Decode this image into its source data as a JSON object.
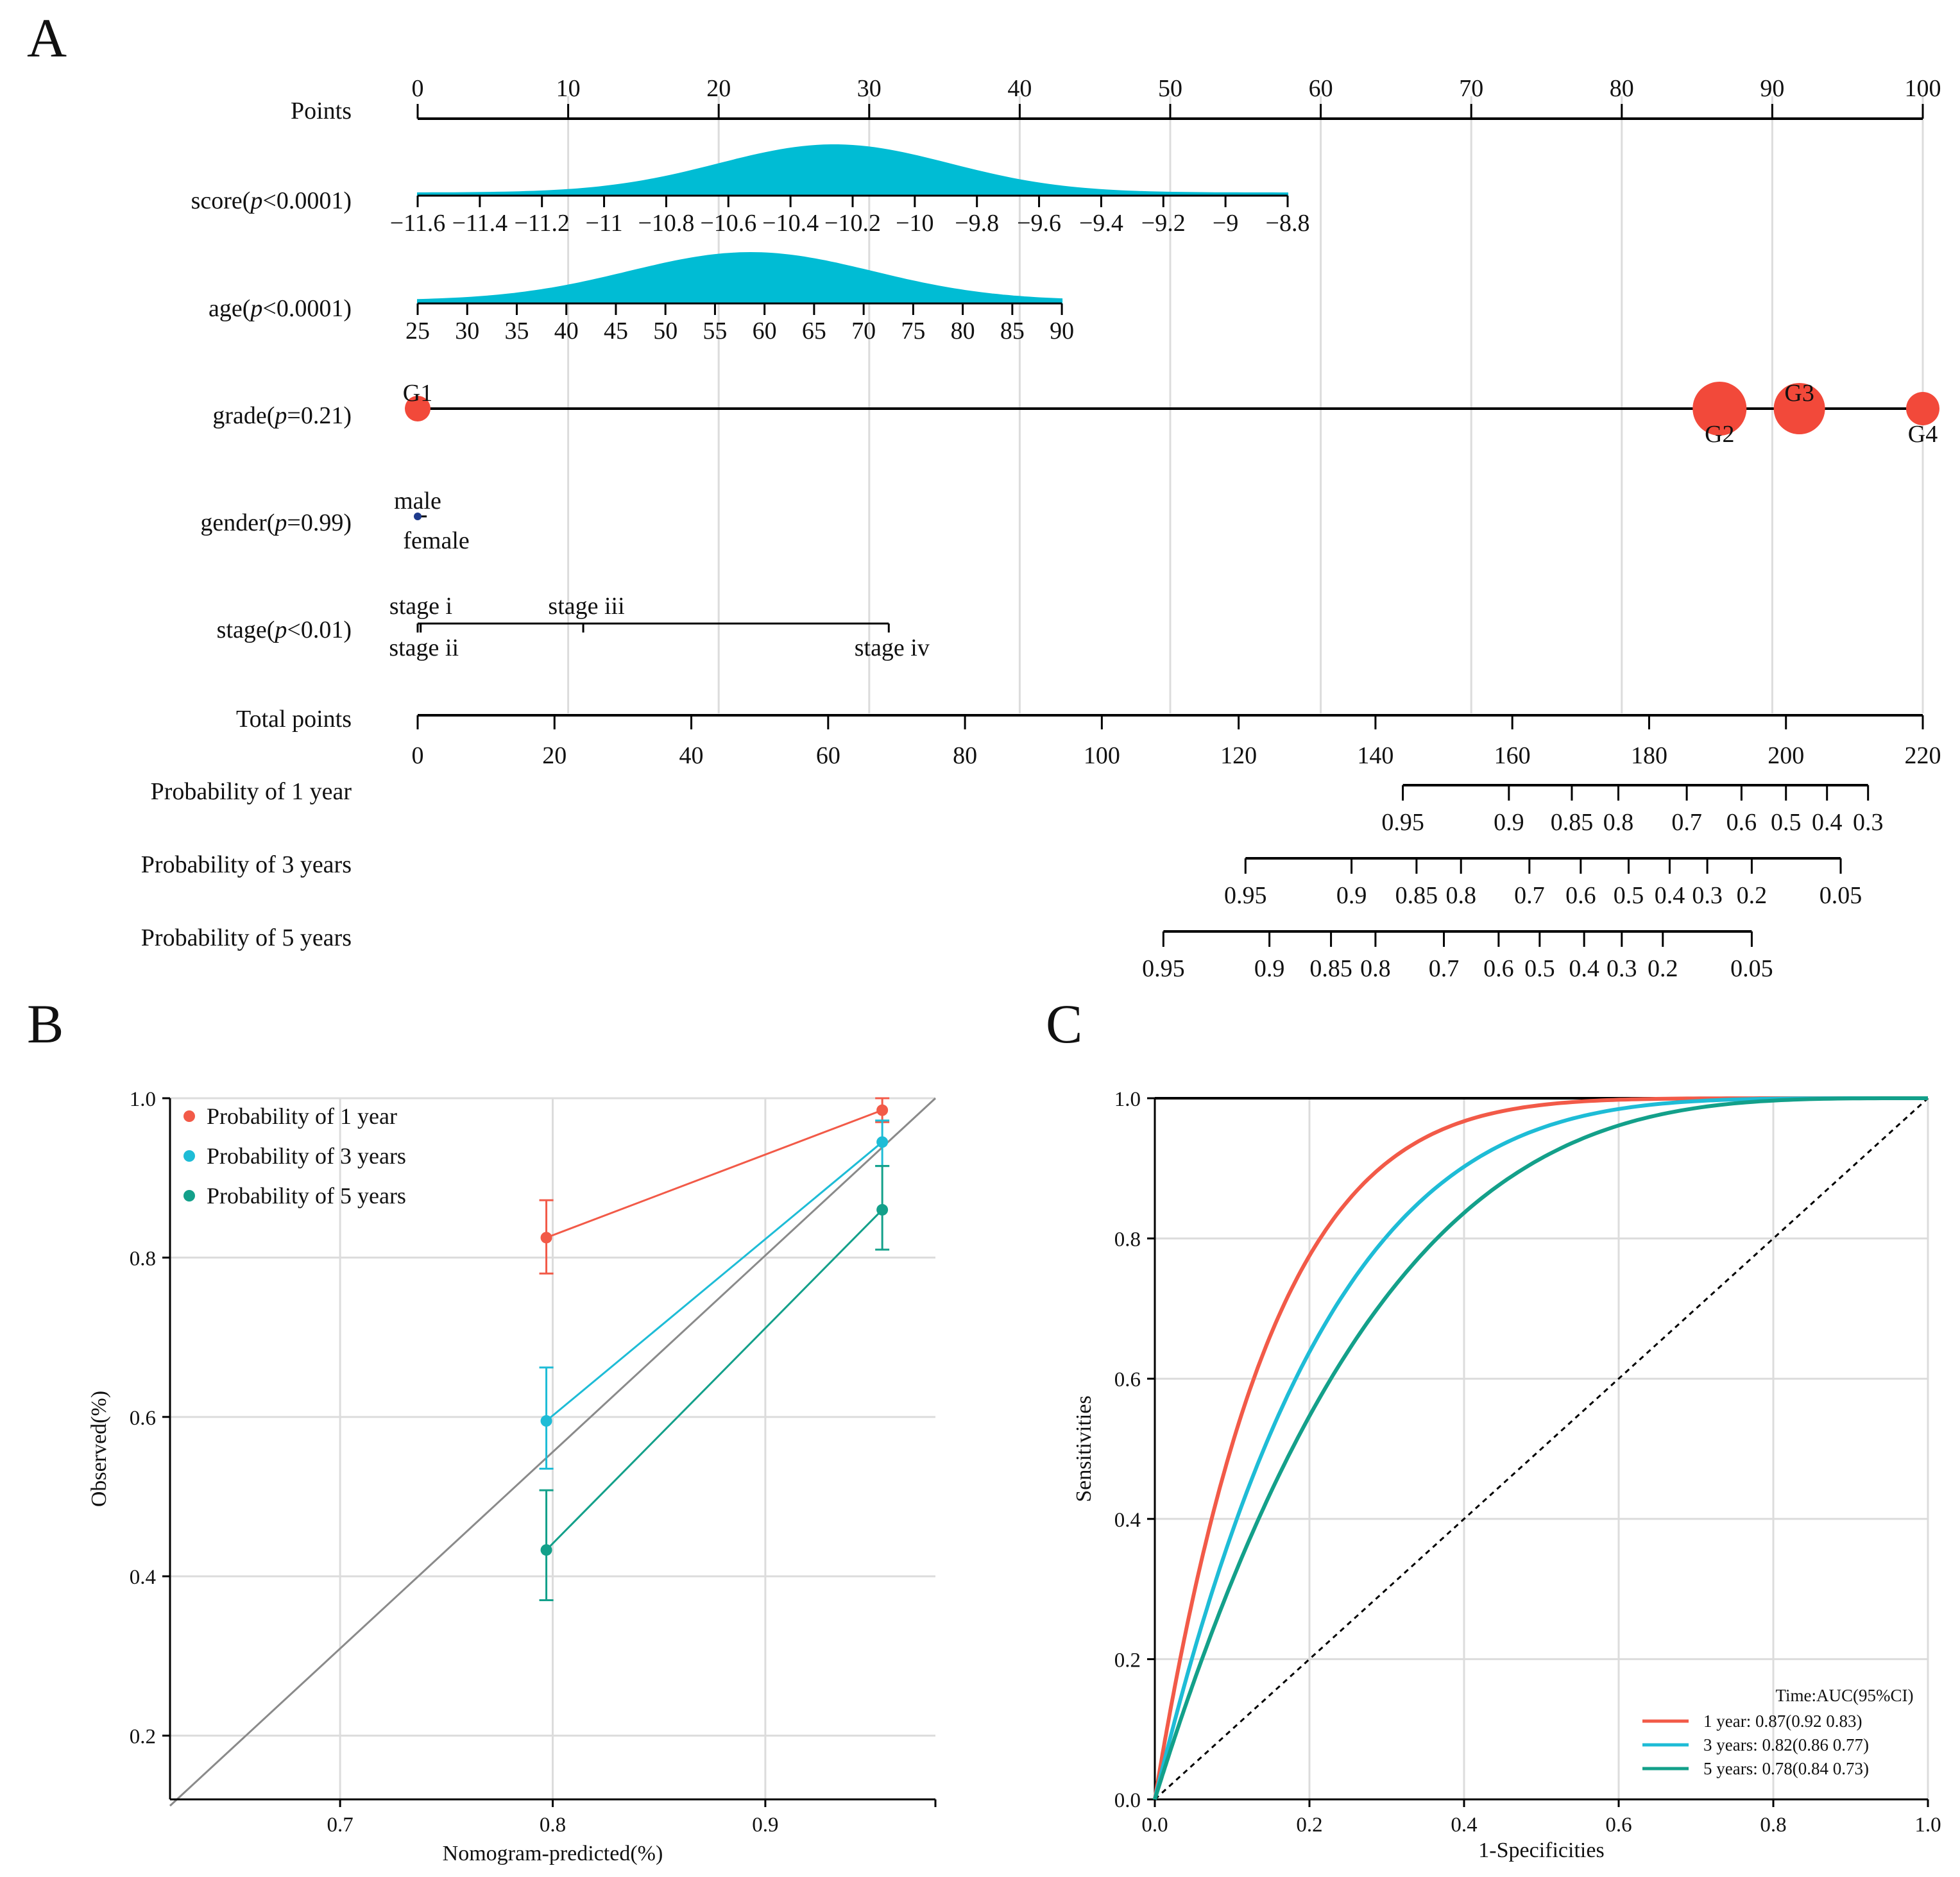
{
  "panels": {
    "a": "A",
    "b": "B",
    "c": "C"
  },
  "colors": {
    "one_year": "#f25a48",
    "three_year": "#1ebcd6",
    "five_year": "#13a08a",
    "fill": "#00bcd4",
    "dot": "#f2493a",
    "gender_dot": "#1f3b8c"
  },
  "nomogram": {
    "points": {
      "label": "Points",
      "ticks": [
        0,
        10,
        20,
        30,
        40,
        50,
        60,
        70,
        80,
        90,
        100
      ]
    },
    "score": {
      "label_main": "score(",
      "label_p": "p",
      "label_rest": "<0.0001)",
      "ticks": [
        "−11.6",
        "−11.4",
        "−11.2",
        "−11",
        "−10.8",
        "−10.6",
        "−10.4",
        "−10.2",
        "−10",
        "−9.8",
        "−9.6",
        "−9.4",
        "−9.2",
        "−9",
        "−8.8"
      ]
    },
    "age": {
      "label_main": "age(",
      "label_p": "p",
      "label_rest": "<0.0001)",
      "ticks": [
        "25",
        "30",
        "35",
        "40",
        "45",
        "50",
        "55",
        "60",
        "65",
        "70",
        "75",
        "80",
        "85",
        "90"
      ]
    },
    "grade": {
      "label_main": "grade(",
      "label_p": "p",
      "label_rest": "=0.21)",
      "levels": [
        {
          "name": "G1",
          "points": 0,
          "label_pos": "above",
          "size": 1
        },
        {
          "name": "G2",
          "points": 86.5,
          "label_pos": "below",
          "size": 2.1
        },
        {
          "name": "G3",
          "points": 91.8,
          "label_pos": "above",
          "size": 2
        },
        {
          "name": "G4",
          "points": 100,
          "label_pos": "below",
          "size": 1.3
        }
      ]
    },
    "gender": {
      "label_main": "gender(",
      "label_p": "p",
      "label_rest": "=0.99)",
      "levels": [
        {
          "name": "male",
          "points": 0,
          "label_pos": "above"
        },
        {
          "name": "female",
          "points": 0.6,
          "label_pos": "below"
        }
      ]
    },
    "stage": {
      "label_main": "stage(",
      "label_p": "p",
      "label_rest": "<0.01)",
      "levels": [
        {
          "name": "stage i",
          "points": 0,
          "label_pos": "above"
        },
        {
          "name": "stage ii",
          "points": 0.2,
          "label_pos": "below"
        },
        {
          "name": "stage iii",
          "points": 11,
          "label_pos": "above"
        },
        {
          "name": "stage iv",
          "points": 31.3,
          "label_pos": "below"
        }
      ]
    },
    "total_points": {
      "label": "Total points",
      "ticks": [
        0,
        20,
        40,
        60,
        80,
        100,
        120,
        140,
        160,
        180,
        200,
        220
      ]
    },
    "prob_1yr": {
      "label": "Probability of 1 year",
      "ticks": [
        {
          "text": "0.95",
          "total": 144
        },
        {
          "text": "0.9",
          "total": 159.5
        },
        {
          "text": "0.85",
          "total": 168.7
        },
        {
          "text": "0.8",
          "total": 175.5
        },
        {
          "text": "0.7",
          "total": 185.5
        },
        {
          "text": "0.6",
          "total": 193.5
        },
        {
          "text": "0.5",
          "total": 200
        },
        {
          "text": "0.4",
          "total": 206
        },
        {
          "text": "0.3",
          "total": 212
        }
      ]
    },
    "prob_3yr": {
      "label": "Probability of 3 years",
      "ticks": [
        {
          "text": "0.95",
          "total": 121
        },
        {
          "text": "0.9",
          "total": 136.5
        },
        {
          "text": "0.85",
          "total": 146
        },
        {
          "text": "0.8",
          "total": 152.5
        },
        {
          "text": "0.7",
          "total": 162.5
        },
        {
          "text": "0.6",
          "total": 170
        },
        {
          "text": "0.5",
          "total": 177
        },
        {
          "text": "0.4",
          "total": 183
        },
        {
          "text": "0.3",
          "total": 188.5
        },
        {
          "text": "0.2",
          "total": 195
        },
        {
          "text": "0.05",
          "total": 208
        }
      ]
    },
    "prob_5yr": {
      "label": "Probability of 5 years",
      "ticks": [
        {
          "text": "0.95",
          "total": 109
        },
        {
          "text": "0.9",
          "total": 124.5
        },
        {
          "text": "0.85",
          "total": 133.5
        },
        {
          "text": "0.8",
          "total": 140
        },
        {
          "text": "0.7",
          "total": 150
        },
        {
          "text": "0.6",
          "total": 158
        },
        {
          "text": "0.5",
          "total": 164
        },
        {
          "text": "0.4",
          "total": 170.5
        },
        {
          "text": "0.3",
          "total": 176
        },
        {
          "text": "0.2",
          "total": 182
        },
        {
          "text": "0.05",
          "total": 195
        }
      ]
    }
  },
  "chart_data": [
    {
      "type": "line",
      "panel": "B",
      "title": "",
      "xlabel": "Nomogram-predicted(%)",
      "ylabel": "Observed(%)",
      "xlim": [
        0.62,
        0.98
      ],
      "ylim": [
        0.12,
        1.0
      ],
      "xticks": [
        0.7,
        0.8,
        0.9
      ],
      "yticks": [
        0.2,
        0.4,
        0.6,
        0.8,
        1.0
      ],
      "xtick_labels": [
        "0.7",
        "0.8",
        "0.9"
      ],
      "ytick_labels": [
        "0.2",
        "0.4",
        "0.6",
        "0.8",
        "1.0"
      ],
      "reference_line": "diagonal",
      "legend_position": "top-left",
      "series": [
        {
          "name": "Probability of 1 year",
          "x": [
            0.797,
            0.955
          ],
          "y": [
            0.825,
            0.985
          ],
          "err_low": [
            0.78,
            0.97
          ],
          "err_high": [
            0.872,
            1.0
          ]
        },
        {
          "name": "Probability of 3 years",
          "x": [
            0.797,
            0.955
          ],
          "y": [
            0.595,
            0.945
          ],
          "err_low": [
            0.535,
            0.915
          ],
          "err_high": [
            0.662,
            0.972
          ]
        },
        {
          "name": "Probability of 5 years",
          "x": [
            0.797,
            0.955
          ],
          "y": [
            0.433,
            0.86
          ],
          "err_low": [
            0.37,
            0.81
          ],
          "err_high": [
            0.508,
            0.915
          ]
        }
      ]
    },
    {
      "type": "line",
      "panel": "C",
      "title": "",
      "xlabel": "1-Specificities",
      "ylabel": "Sensitivities",
      "xlim": [
        0,
        1
      ],
      "ylim": [
        0,
        1
      ],
      "xticks": [
        0,
        0.2,
        0.4,
        0.6,
        0.8,
        1.0
      ],
      "yticks": [
        0,
        0.2,
        0.4,
        0.6,
        0.8,
        1.0
      ],
      "xtick_labels": [
        "0.0",
        "0.2",
        "0.4",
        "0.6",
        "0.8",
        "1.0"
      ],
      "ytick_labels": [
        "0.0",
        "0.2",
        "0.4",
        "0.6",
        "0.8",
        "1.0"
      ],
      "reference_line": "diagonal-dashed",
      "legend_position": "bottom-right",
      "legend_title": "Time:AUC(95%CI)",
      "series": [
        {
          "name": "1 year",
          "legend": "1 year:  0.87(0.92  0.83)",
          "auc": 0.87,
          "ci": [
            0.92,
            0.83
          ]
        },
        {
          "name": "3 years",
          "legend": "3 years: 0.82(0.86  0.77)",
          "auc": 0.82,
          "ci": [
            0.86,
            0.77
          ]
        },
        {
          "name": "5 years",
          "legend": "5 years: 0.78(0.84  0.73)",
          "auc": 0.78,
          "ci": [
            0.84,
            0.73
          ]
        }
      ]
    }
  ]
}
